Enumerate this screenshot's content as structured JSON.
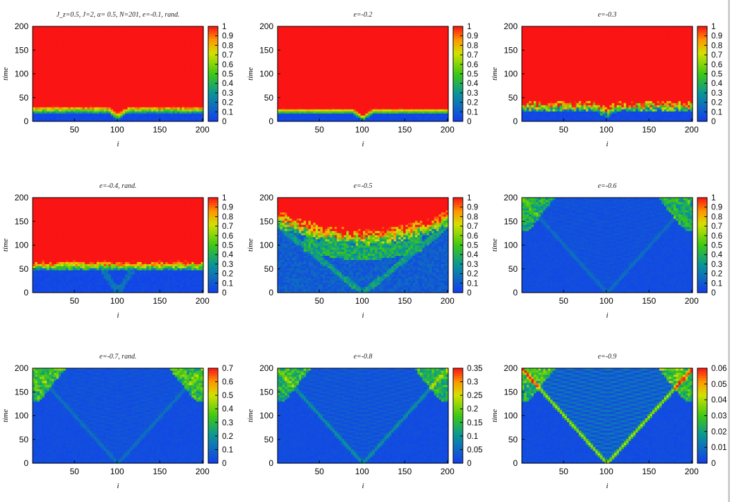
{
  "chart_data": [
    {
      "type": "heatmap",
      "title": "J_z=0.5,  J=2, α= 0.5,   N=201,  e=-0.1,   rand.",
      "regime": "front",
      "front_time": 20,
      "front_dip": 14,
      "noise": 0.15,
      "xlabel": "i",
      "ylabel": "time",
      "xlim": [
        1,
        201
      ],
      "ylim": [
        0,
        200
      ],
      "xticks": [
        50,
        100,
        150,
        200
      ],
      "yticks": [
        0,
        50,
        100,
        150,
        200
      ],
      "colorbar": {
        "min": 0,
        "max": 1,
        "ticks": [
          "0",
          "0.1",
          "0.2",
          "0.3",
          "0.4",
          "0.5",
          "0.6",
          "0.7",
          "0.8",
          "0.9",
          "1"
        ]
      }
    },
    {
      "type": "heatmap",
      "title": "e=-0.2",
      "regime": "front",
      "front_time": 18,
      "front_dip": 14,
      "noise": 0.08,
      "xlabel": "i",
      "ylabel": "time",
      "xlim": [
        1,
        201
      ],
      "ylim": [
        0,
        200
      ],
      "xticks": [
        50,
        100,
        150,
        200
      ],
      "yticks": [
        0,
        50,
        100,
        150,
        200
      ],
      "colorbar": {
        "min": 0,
        "max": 1,
        "ticks": [
          "0",
          "0.1",
          "0.2",
          "0.3",
          "0.4",
          "0.5",
          "0.6",
          "0.7",
          "0.8",
          "0.9",
          "1"
        ]
      }
    },
    {
      "type": "heatmap",
      "title": "e=-0.3",
      "regime": "front",
      "front_time": 22,
      "front_dip": 12,
      "noise": 0.5,
      "xlabel": "i",
      "ylabel": "time",
      "xlim": [
        1,
        201
      ],
      "ylim": [
        0,
        200
      ],
      "xticks": [
        50,
        100,
        150,
        200
      ],
      "yticks": [
        0,
        50,
        100,
        150,
        200
      ],
      "colorbar": {
        "min": 0,
        "max": 1,
        "ticks": [
          "0",
          "0.1",
          "0.2",
          "0.3",
          "0.4",
          "0.5",
          "0.6",
          "0.7",
          "0.8",
          "0.9",
          "1"
        ]
      }
    },
    {
      "type": "heatmap",
      "title": "e=-0.4,   rand.",
      "regime": "front_cone",
      "front_time": 50,
      "front_dip": 0,
      "noise": 0.3,
      "xlabel": "i",
      "ylabel": "time",
      "xlim": [
        1,
        201
      ],
      "ylim": [
        0,
        200
      ],
      "xticks": [
        50,
        100,
        150,
        200
      ],
      "yticks": [
        0,
        50,
        100,
        150,
        200
      ],
      "colorbar": {
        "min": 0,
        "max": 1,
        "ticks": [
          "0",
          "0.1",
          "0.2",
          "0.3",
          "0.4",
          "0.5",
          "0.6",
          "0.7",
          "0.8",
          "0.9",
          "1"
        ]
      }
    },
    {
      "type": "heatmap",
      "title": "e=-0.5",
      "regime": "dome",
      "front_time": 110,
      "front_dip": 0,
      "noise": 0.4,
      "xlabel": "i",
      "ylabel": "time",
      "xlim": [
        1,
        201
      ],
      "ylim": [
        0,
        200
      ],
      "xticks": [
        50,
        100,
        150,
        200
      ],
      "yticks": [
        0,
        50,
        100,
        150,
        200
      ],
      "colorbar": {
        "min": 0,
        "max": 1,
        "ticks": [
          "0",
          "0.1",
          "0.2",
          "0.3",
          "0.4",
          "0.5",
          "0.6",
          "0.7",
          "0.8",
          "0.9",
          "1"
        ]
      }
    },
    {
      "type": "heatmap",
      "title": "e=-0.6",
      "regime": "cone",
      "cone_strength": 0.08,
      "edge_strength": 0.45,
      "xlabel": "i",
      "ylabel": "time",
      "xlim": [
        1,
        201
      ],
      "ylim": [
        0,
        200
      ],
      "xticks": [
        50,
        100,
        150,
        200
      ],
      "yticks": [
        0,
        50,
        100,
        150,
        200
      ],
      "colorbar": {
        "min": 0,
        "max": 1,
        "ticks": [
          "0",
          "0.1",
          "0.2",
          "0.3",
          "0.4",
          "0.5",
          "0.6",
          "0.7",
          "0.8",
          "0.9",
          "1"
        ]
      }
    },
    {
      "type": "heatmap",
      "title": "e=-0.7,   rand.",
      "regime": "cone",
      "cone_strength": 0.09,
      "edge_strength": 0.55,
      "xlabel": "i",
      "ylabel": "time",
      "xlim": [
        1,
        201
      ],
      "ylim": [
        0,
        200
      ],
      "xticks": [
        50,
        100,
        150,
        200
      ],
      "yticks": [
        0,
        50,
        100,
        150,
        200
      ],
      "colorbar": {
        "min": 0,
        "max": 0.7,
        "ticks": [
          "0",
          "0.1",
          "0.2",
          "0.3",
          "0.4",
          "0.5",
          "0.6",
          "0.7"
        ]
      }
    },
    {
      "type": "heatmap",
      "title": "e=-0.8",
      "regime": "cone",
      "cone_strength": 0.16,
      "edge_strength": 0.5,
      "xlabel": "i",
      "ylabel": "time",
      "xlim": [
        1,
        201
      ],
      "ylim": [
        0,
        200
      ],
      "xticks": [
        50,
        100,
        150,
        200
      ],
      "yticks": [
        0,
        50,
        100,
        150,
        200
      ],
      "colorbar": {
        "min": 0,
        "max": 0.35,
        "ticks": [
          "0",
          "0.05",
          "0.1",
          "0.15",
          "0.2",
          "0.25",
          "0.3",
          "0.35"
        ]
      }
    },
    {
      "type": "heatmap",
      "title": "e=-0.9",
      "regime": "cone",
      "cone_strength": 0.42,
      "edge_strength": 0.55,
      "xlabel": "i",
      "ylabel": "time",
      "xlim": [
        1,
        201
      ],
      "ylim": [
        0,
        200
      ],
      "xticks": [
        50,
        100,
        150,
        200
      ],
      "yticks": [
        0,
        50,
        100,
        150,
        200
      ],
      "colorbar": {
        "min": 0,
        "max": 0.06,
        "ticks": [
          "0",
          "0.01",
          "0.02",
          "0.03",
          "0.04",
          "0.05",
          "0.06"
        ]
      }
    }
  ]
}
